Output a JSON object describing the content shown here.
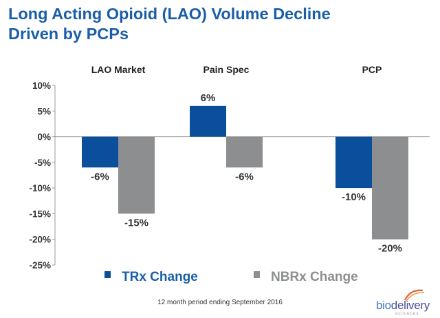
{
  "title": {
    "line1": "Long Acting Opioid (LAO) Volume Decline",
    "line2": "Driven by PCPs"
  },
  "footnote": "12 month period ending September 2016",
  "logo": {
    "text_bio": "bio",
    "text_delivery": "delivery",
    "subtext": "SCIENCES"
  },
  "colors": {
    "title": "#1a5ea8",
    "trx": "#0b4e9c",
    "nbrx": "#8c8e8f"
  },
  "chart_data": {
    "type": "bar",
    "categories": [
      "LAO Market",
      "Pain Spec",
      "PCP"
    ],
    "series": [
      {
        "name": "TRx Change",
        "values": [
          -6,
          6,
          -10
        ],
        "labels": [
          "-6%",
          "6%",
          "-10%"
        ],
        "color": "#0b4e9c"
      },
      {
        "name": "NBRx Change",
        "values": [
          -15,
          -6,
          -20
        ],
        "labels": [
          "-15%",
          "-6%",
          "-20%"
        ],
        "color": "#8c8e8f"
      }
    ],
    "yticks": [
      "10%",
      "5%",
      "0%",
      "-5%",
      "-10%",
      "-15%",
      "-20%",
      "-25%"
    ],
    "ylim": [
      -25,
      10
    ],
    "legend": "bottom",
    "grid": false
  }
}
